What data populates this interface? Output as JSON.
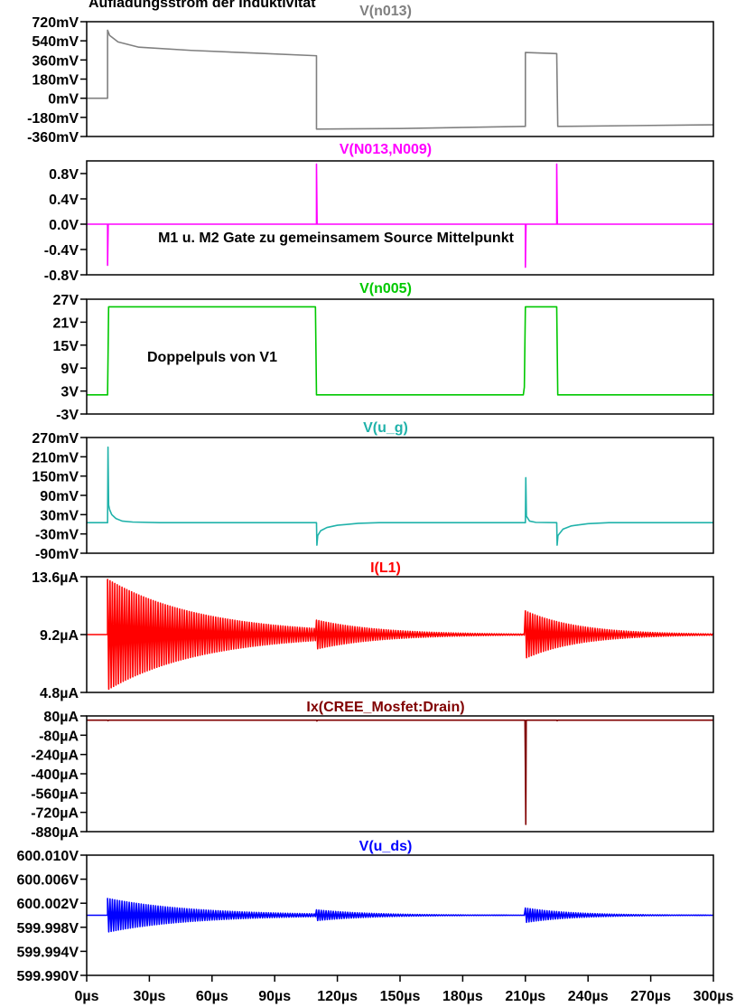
{
  "chart_data": {
    "type": "line",
    "x_axis": {
      "ticks": [
        0,
        30,
        60,
        90,
        120,
        150,
        180,
        210,
        240,
        270,
        300
      ],
      "tick_labels": [
        "0µs",
        "30µs",
        "60µs",
        "90µs",
        "120µs",
        "150µs",
        "180µs",
        "210µs",
        "240µs",
        "270µs",
        "300µs"
      ],
      "range": [
        0,
        300
      ]
    },
    "annotations": [
      {
        "text": "Aufladungsstrom der Induktivität",
        "panel": 0
      },
      {
        "text": "M1 u. M2 Gate zu gemeinsamem Source Mittelpunkt",
        "panel": 1
      },
      {
        "text": "Doppelpuls von V1",
        "panel": 2
      }
    ],
    "panels": [
      {
        "title": "V(n013)",
        "color": "#808080",
        "ylim": [
          -360,
          720
        ],
        "yticks": [
          720,
          540,
          360,
          180,
          0,
          -180,
          -360
        ],
        "ytick_labels": [
          "720mV",
          "540mV",
          "360mV",
          "180mV",
          "0mV",
          "-180mV",
          "-360mV"
        ],
        "points": [
          [
            0,
            0
          ],
          [
            10,
            0
          ],
          [
            10,
            640
          ],
          [
            11,
            590
          ],
          [
            15,
            530
          ],
          [
            25,
            480
          ],
          [
            50,
            450
          ],
          [
            80,
            425
          ],
          [
            109.5,
            400
          ],
          [
            110,
            400
          ],
          [
            110,
            -290
          ],
          [
            150,
            -285
          ],
          [
            209.5,
            -265
          ],
          [
            210,
            -265
          ],
          [
            210,
            430
          ],
          [
            225,
            420
          ],
          [
            225.5,
            -265
          ],
          [
            260,
            -258
          ],
          [
            300,
            -250
          ]
        ]
      },
      {
        "title": "V(N013,N009)",
        "color": "#ff00ff",
        "ylim": [
          -0.8,
          1.0
        ],
        "yticks": [
          0.8,
          0.4,
          0.0,
          -0.4,
          -0.8
        ],
        "ytick_labels": [
          "0.8V",
          "0.4V",
          "0.0V",
          "-0.4V",
          "-0.8V"
        ],
        "points": [
          [
            0,
            0
          ],
          [
            10,
            0
          ],
          [
            10,
            -0.65
          ],
          [
            10.3,
            0
          ],
          [
            110,
            0
          ],
          [
            110,
            0.95
          ],
          [
            110.3,
            0
          ],
          [
            210,
            0
          ],
          [
            210,
            -0.68
          ],
          [
            210.3,
            0
          ],
          [
            225,
            0
          ],
          [
            225,
            0.95
          ],
          [
            225.3,
            0
          ],
          [
            300,
            0
          ]
        ]
      },
      {
        "title": "V(n005)",
        "color": "#00c800",
        "ylim": [
          -3,
          27
        ],
        "yticks": [
          27,
          21,
          15,
          9,
          3,
          -3
        ],
        "ytick_labels": [
          "27V",
          "21V",
          "15V",
          "9V",
          "3V",
          "-3V"
        ],
        "points": [
          [
            0,
            2
          ],
          [
            10,
            2
          ],
          [
            10.5,
            25
          ],
          [
            109.5,
            25
          ],
          [
            110,
            2
          ],
          [
            209,
            2
          ],
          [
            209.5,
            4
          ],
          [
            210,
            25
          ],
          [
            225,
            25
          ],
          [
            225.5,
            2
          ],
          [
            300,
            2
          ]
        ]
      },
      {
        "title": "V(u_g)",
        "color": "#20b2aa",
        "ylim": [
          -90,
          270
        ],
        "yticks": [
          270,
          210,
          150,
          90,
          30,
          -30,
          -90
        ],
        "ytick_labels": [
          "270mV",
          "210mV",
          "150mV",
          "90mV",
          "30mV",
          "-30mV",
          "-90mV"
        ],
        "points": [
          [
            0,
            5
          ],
          [
            10,
            5
          ],
          [
            10.2,
            240
          ],
          [
            10.5,
            60
          ],
          [
            11,
            45
          ],
          [
            12,
            30
          ],
          [
            14,
            18
          ],
          [
            17,
            10
          ],
          [
            22,
            7
          ],
          [
            35,
            5
          ],
          [
            110,
            5
          ],
          [
            110,
            5
          ],
          [
            110.2,
            -65
          ],
          [
            110.6,
            -35
          ],
          [
            112,
            -20
          ],
          [
            115,
            -10
          ],
          [
            120,
            -3
          ],
          [
            130,
            3
          ],
          [
            140,
            5
          ],
          [
            210,
            5
          ],
          [
            210.2,
            145
          ],
          [
            210.5,
            25
          ],
          [
            212,
            10
          ],
          [
            215,
            6
          ],
          [
            225,
            5
          ],
          [
            225.2,
            -65
          ],
          [
            225.6,
            -35
          ],
          [
            228,
            -15
          ],
          [
            232,
            -5
          ],
          [
            240,
            2
          ],
          [
            250,
            5
          ],
          [
            300,
            5
          ]
        ]
      },
      {
        "title": "I(L1)",
        "color": "#ff0000",
        "ylim": [
          4.8,
          13.6
        ],
        "yticks": [
          13.6,
          9.2,
          4.8
        ],
        "ytick_labels": [
          "13.6µA",
          "9.2µA",
          "4.8µA"
        ],
        "baseline": 9.2,
        "bursts": [
          {
            "start": 10,
            "end": 110,
            "amplitude": 4.2,
            "tau": 45
          },
          {
            "start": 110,
            "end": 210,
            "amplitude": 1.1,
            "tau": 30
          },
          {
            "start": 210,
            "end": 300,
            "amplitude": 1.8,
            "tau": 25
          }
        ]
      },
      {
        "title": "Ix(CREE_Mosfet:Drain)",
        "color": "#800000",
        "ylim": [
          -880,
          80
        ],
        "yticks": [
          80,
          -80,
          -240,
          -400,
          -560,
          -720,
          -880
        ],
        "ytick_labels": [
          "80µA",
          "-80µA",
          "-240µA",
          "-400µA",
          "-560µA",
          "-720µA",
          "-880µA"
        ],
        "points": [
          [
            0,
            45
          ],
          [
            10,
            45
          ],
          [
            10.2,
            40
          ],
          [
            10.5,
            45
          ],
          [
            110,
            45
          ],
          [
            110.2,
            38
          ],
          [
            110.5,
            45
          ],
          [
            209.8,
            45
          ],
          [
            210,
            -350
          ],
          [
            210.2,
            -820
          ],
          [
            210.4,
            45
          ],
          [
            225,
            45
          ],
          [
            225.2,
            40
          ],
          [
            225.5,
            45
          ],
          [
            300,
            45
          ]
        ]
      },
      {
        "title": "V(u_ds)",
        "color": "#0000ff",
        "ylim": [
          599.99,
          600.01
        ],
        "yticks": [
          600.01,
          600.006,
          600.002,
          599.998,
          599.994,
          599.99
        ],
        "ytick_labels": [
          "600.010V",
          "600.006V",
          "600.002V",
          "599.998V",
          "599.994V",
          "599.990V"
        ],
        "baseline": 600.0,
        "bursts": [
          {
            "start": 10,
            "end": 110,
            "amplitude": 0.0028,
            "tau": 40
          },
          {
            "start": 110,
            "end": 210,
            "amplitude": 0.0009,
            "tau": 25
          },
          {
            "start": 210,
            "end": 300,
            "amplitude": 0.0012,
            "tau": 22
          }
        ]
      }
    ]
  }
}
